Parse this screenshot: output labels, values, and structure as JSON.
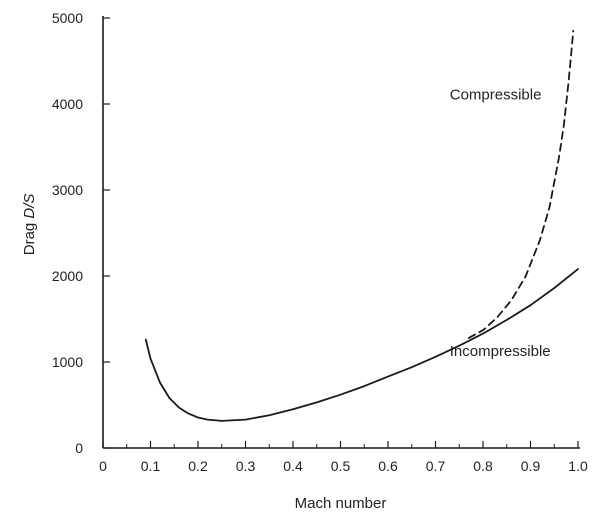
{
  "chart_data": {
    "type": "line",
    "title": "",
    "xlabel": "Mach number",
    "ylabel": "Drag D/S",
    "ylabel_main": "Drag ",
    "ylabel_italic": "D/S",
    "xlim": [
      0,
      1.0
    ],
    "ylim": [
      0,
      5000
    ],
    "x_ticks": [
      0,
      0.1,
      0.2,
      0.3,
      0.4,
      0.5,
      0.6,
      0.7,
      0.8,
      0.9,
      1.0
    ],
    "x_tick_labels": [
      "0",
      "0.1",
      "0.2",
      "0.3",
      "0.4",
      "0.5",
      "0.6",
      "0.7",
      "0.8",
      "0.9",
      "1.0"
    ],
    "y_ticks": [
      0,
      1000,
      2000,
      3000,
      4000,
      5000
    ],
    "y_tick_labels": [
      "0",
      "1000",
      "2000",
      "3000",
      "4000",
      "5000"
    ],
    "grid": false,
    "legend": "none",
    "series": [
      {
        "name": "Incompressible",
        "style": "solid",
        "color": "#1a1a1a",
        "x": [
          0.09,
          0.1,
          0.12,
          0.14,
          0.16,
          0.18,
          0.2,
          0.22,
          0.25,
          0.3,
          0.35,
          0.4,
          0.45,
          0.5,
          0.55,
          0.6,
          0.65,
          0.7,
          0.75,
          0.8,
          0.85,
          0.9,
          0.95,
          1.0
        ],
        "y": [
          1260,
          1040,
          760,
          580,
          470,
          400,
          355,
          330,
          315,
          330,
          380,
          450,
          530,
          620,
          720,
          830,
          940,
          1060,
          1190,
          1330,
          1490,
          1660,
          1860,
          2080
        ]
      },
      {
        "name": "Compressible",
        "style": "dashed",
        "color": "#1a1a1a",
        "x": [
          0.77,
          0.8,
          0.83,
          0.86,
          0.89,
          0.92,
          0.94,
          0.96,
          0.97,
          0.98,
          0.985,
          0.99
        ],
        "y": [
          1280,
          1370,
          1520,
          1720,
          2000,
          2420,
          2800,
          3380,
          3750,
          4250,
          4550,
          4850
        ]
      }
    ],
    "annotations": [
      {
        "text": "Compressible",
        "x": 0.73,
        "y": 4050
      },
      {
        "text": "Incompressible",
        "x": 0.73,
        "y": 1070
      }
    ]
  }
}
